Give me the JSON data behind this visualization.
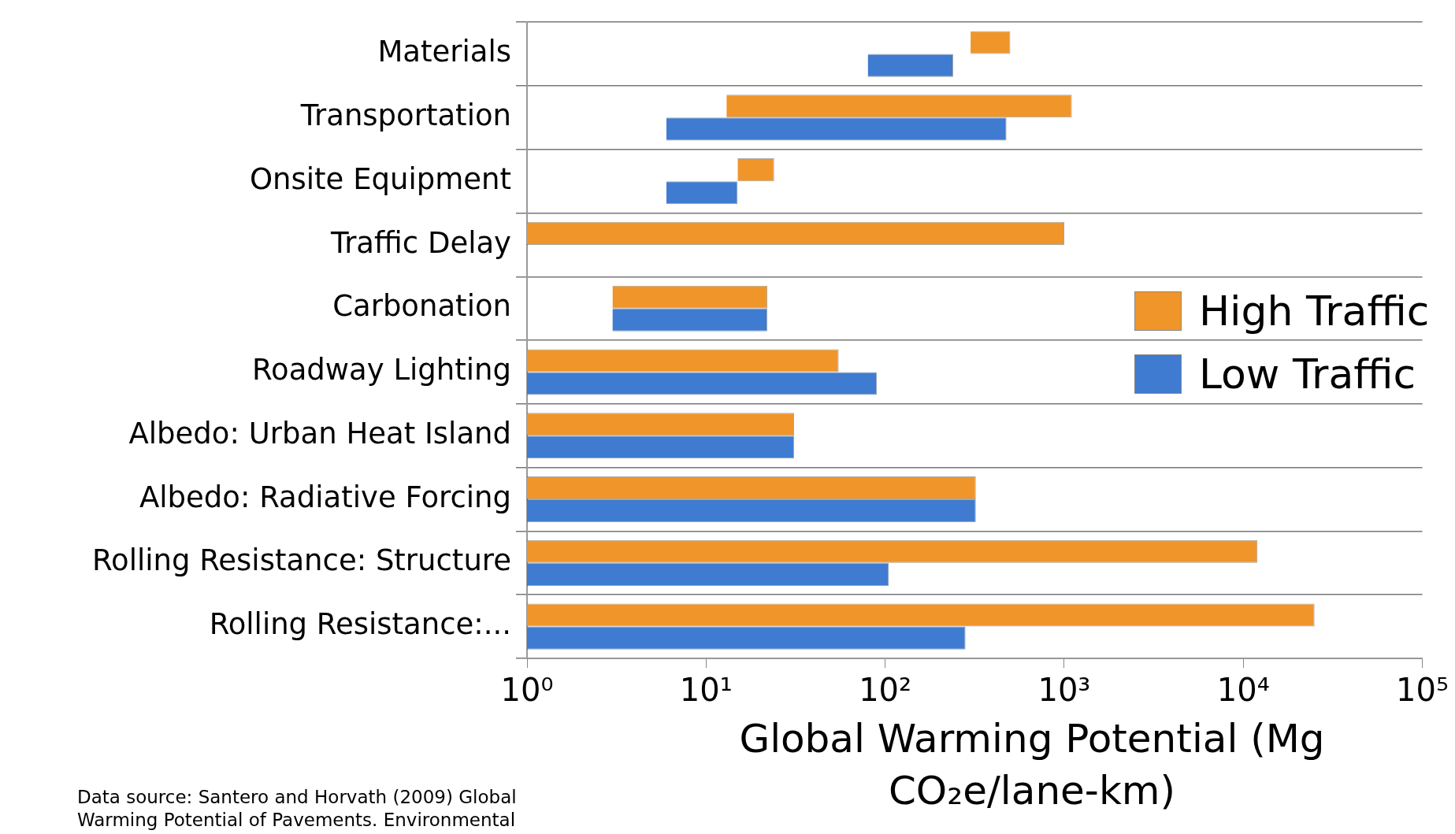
{
  "chart_data": {
    "type": "bar",
    "orientation": "horizontal",
    "log": "x",
    "categories": [
      "Materials",
      "Transportation",
      "Onsite Equipment",
      "Traffic Delay",
      "Carbonation",
      "Roadway Lighting",
      "Albedo: Urban Heat Island",
      "Albedo: Radiative Forcing",
      "Rolling Resistance: Structure",
      "Rolling Resistance:..."
    ],
    "series": [
      {
        "name": "High Traffic",
        "color": "#f0952a",
        "base": [
          300,
          13,
          15,
          1,
          3,
          1,
          1,
          1,
          1,
          1
        ],
        "values": [
          200,
          1090,
          9,
          1000,
          19,
          54,
          30,
          320,
          12000,
          25000
        ]
      },
      {
        "name": "Low Traffic",
        "color": "#3f7bd0",
        "base": [
          80,
          6,
          6,
          null,
          3,
          1,
          1,
          1,
          1,
          1
        ],
        "values": [
          160,
          470,
          9,
          null,
          19,
          89,
          30,
          320,
          104,
          280
        ]
      }
    ],
    "xlim": [
      1,
      100000
    ],
    "xticks": [
      {
        "value": 1,
        "label": "10⁰"
      },
      {
        "value": 10,
        "label": "10¹"
      },
      {
        "value": 100,
        "label": "10²"
      },
      {
        "value": 1000,
        "label": "10³"
      },
      {
        "value": 10000,
        "label": "10⁴"
      },
      {
        "value": 100000,
        "label": "10⁵"
      }
    ],
    "xlabel": "Global Warming Potential (Mg CO₂e/lane-km)",
    "grid": "y",
    "legend": "right",
    "annotations": [
      "Data source: Santero and Horvath (2009) Global Warming Potential of Pavements. Environmental"
    ]
  }
}
